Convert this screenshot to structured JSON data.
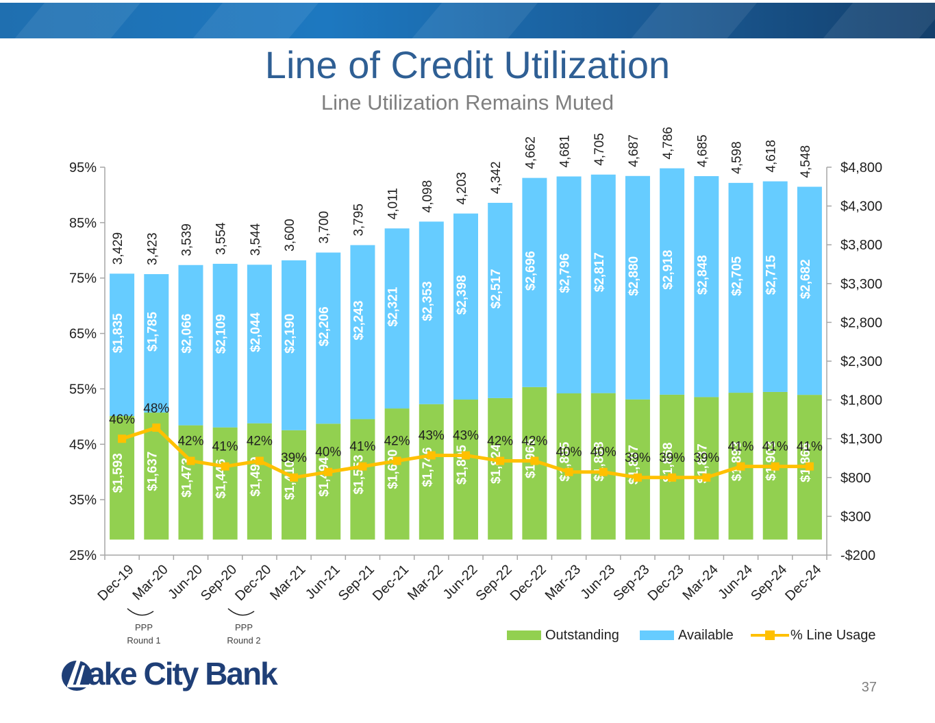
{
  "title": "Line of Credit Utilization",
  "subtitle": "Line Utilization Remains Muted",
  "page_number": "37",
  "logo_text": "Lake City Bank",
  "annotations": [
    {
      "text_line1": "PPP",
      "text_line2": "Round 1"
    },
    {
      "text_line1": "PPP",
      "text_line2": "Round 2"
    }
  ],
  "colors": {
    "outstanding": "#92d050",
    "available": "#66ccff",
    "usage": "#ffc000",
    "title": "#2f5f94"
  },
  "chart_data": {
    "type": "bar",
    "stacked": true,
    "categories": [
      "Dec-19",
      "Mar-20",
      "Jun-20",
      "Sep-20",
      "Dec-20",
      "Mar-21",
      "Jun-21",
      "Sep-21",
      "Dec-21",
      "Mar-22",
      "Jun-22",
      "Sep-22",
      "Dec-22",
      "Mar-23",
      "Jun-23",
      "Sep-23",
      "Dec-23",
      "Mar-24",
      "Jun-24",
      "Sep-24",
      "Dec-24"
    ],
    "series": [
      {
        "name": "Outstanding",
        "type": "bar",
        "axis": "right",
        "values": [
          1593,
          1637,
          1473,
          1446,
          1499,
          1410,
          1494,
          1553,
          1690,
          1746,
          1805,
          1824,
          1966,
          1885,
          1888,
          1807,
          1868,
          1837,
          1893,
          1903,
          1866
        ],
        "labels": [
          "$1,593",
          "$1,637",
          "$1,473",
          "$1,446",
          "$1,499",
          "$1,410",
          "$1,494",
          "$1,553",
          "$1,690",
          "$1,746",
          "$1,805",
          "$1,824",
          "$1,966",
          "$1,885",
          "$1,888",
          "$1,807",
          "$1,868",
          "$1,837",
          "$1,893",
          "$1,903",
          "$1,866"
        ]
      },
      {
        "name": "Available",
        "type": "bar",
        "axis": "right",
        "values": [
          1835,
          1785,
          2066,
          2109,
          2044,
          2190,
          2206,
          2243,
          2321,
          2353,
          2398,
          2517,
          2696,
          2796,
          2817,
          2880,
          2918,
          2848,
          2705,
          2715,
          2682
        ],
        "labels": [
          "$1,835",
          "$1,785",
          "$2,066",
          "$2,109",
          "$2,044",
          "$2,190",
          "$2,206",
          "$2,243",
          "$2,321",
          "$2,353",
          "$2,398",
          "$2,517",
          "$2,696",
          "$2,796",
          "$2,817",
          "$2,880",
          "$2,918",
          "$2,848",
          "$2,705",
          "$2,715",
          "$2,682"
        ]
      },
      {
        "name": "% Line Usage",
        "type": "line",
        "axis": "left",
        "values": [
          46,
          48,
          42,
          41,
          42,
          39,
          40,
          41,
          42,
          43,
          43,
          42,
          42,
          40,
          40,
          39,
          39,
          39,
          41,
          41,
          41
        ],
        "labels": [
          "46%",
          "48%",
          "42%",
          "41%",
          "42%",
          "39%",
          "40%",
          "41%",
          "42%",
          "43%",
          "43%",
          "42%",
          "42%",
          "40%",
          "40%",
          "39%",
          "39%",
          "39%",
          "41%",
          "41%",
          "41%"
        ]
      }
    ],
    "totals": [
      3429,
      3423,
      3539,
      3554,
      3544,
      3600,
      3700,
      3795,
      4011,
      4098,
      4203,
      4342,
      4662,
      4681,
      4705,
      4687,
      4786,
      4685,
      4598,
      4618,
      4548
    ],
    "total_labels": [
      "3,429",
      "3,423",
      "3,539",
      "3,554",
      "3,544",
      "3,600",
      "3,700",
      "3,795",
      "4,011",
      "4,098",
      "4,203",
      "4,342",
      "4,662",
      "4,681",
      "4,705",
      "4,687",
      "4,786",
      "4,685",
      "4,598",
      "4,618",
      "4,548"
    ],
    "y_left": {
      "min": 25,
      "max": 95,
      "ticks": [
        "25%",
        "35%",
        "45%",
        "55%",
        "65%",
        "75%",
        "85%",
        "95%"
      ]
    },
    "y_right": {
      "min": -200,
      "max": 4800,
      "ticks": [
        "-$200",
        "$300",
        "$800",
        "$1,300",
        "$1,800",
        "$2,300",
        "$2,800",
        "$3,300",
        "$3,800",
        "$4,300",
        "$4,800"
      ]
    },
    "legend": {
      "position": "bottom-right",
      "items": [
        "Outstanding",
        "Available",
        "% Line Usage"
      ]
    }
  }
}
